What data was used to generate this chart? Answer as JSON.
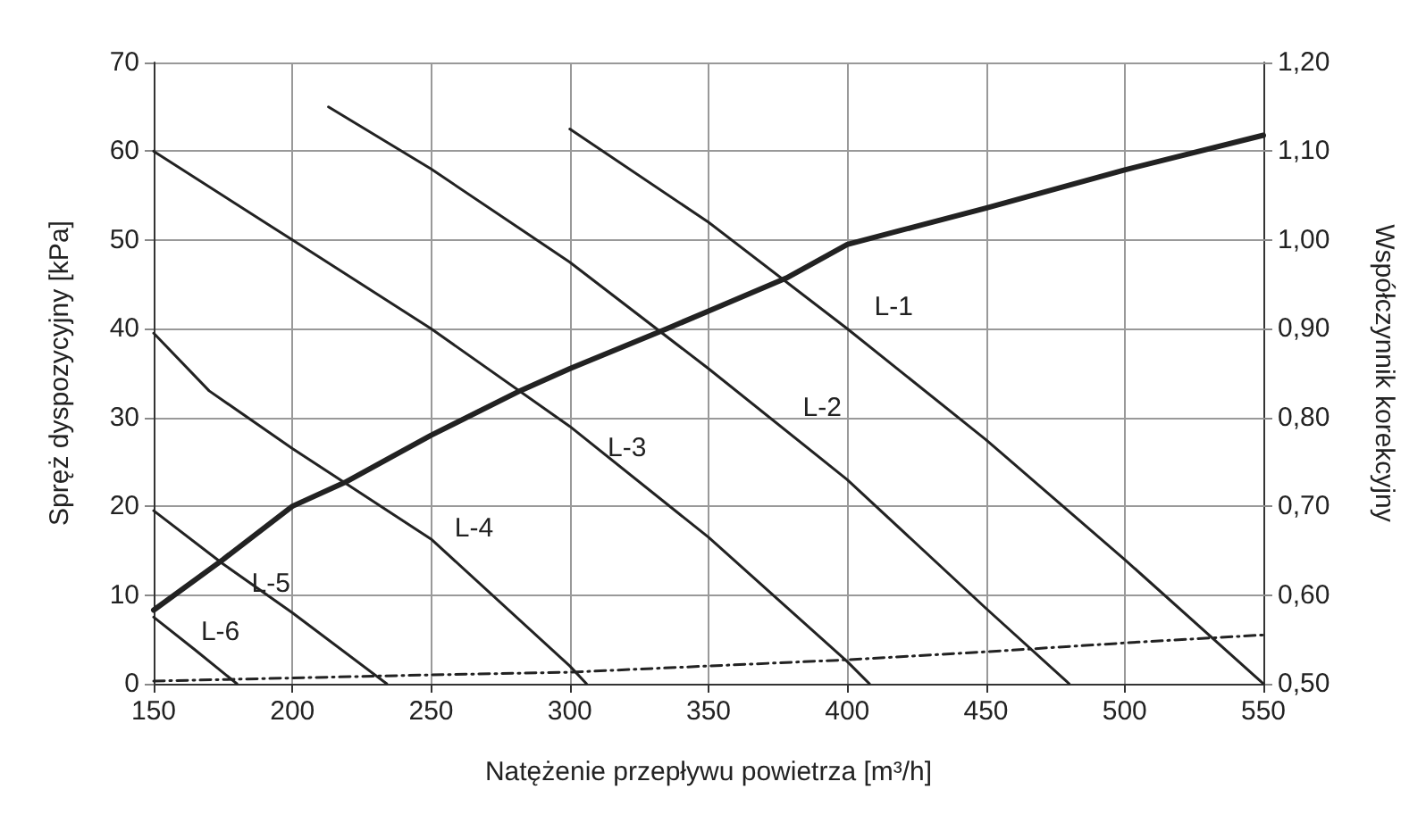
{
  "chart_data": {
    "type": "line",
    "xlabel": "Natężenie przepływu powietrza [m³/h]",
    "ylabel": "Spręż dyspozycyjny [kPa]",
    "y2label": "Współczynnik korekcyjny",
    "xlim": [
      150,
      550
    ],
    "xticks": [
      150,
      200,
      250,
      300,
      350,
      400,
      450,
      500,
      550
    ],
    "ylim": [
      0,
      70
    ],
    "yticks": [
      0,
      10,
      20,
      30,
      40,
      50,
      60,
      70
    ],
    "y2lim": [
      0.5,
      1.2
    ],
    "y2ticks": [
      {
        "value": 0.5,
        "label": "0,50"
      },
      {
        "value": 0.6,
        "label": "0,60"
      },
      {
        "value": 0.7,
        "label": "0,70"
      },
      {
        "value": 0.8,
        "label": "0,80"
      },
      {
        "value": 0.9,
        "label": "0,90"
      },
      {
        "value": 1.0,
        "label": "1,00"
      },
      {
        "value": 1.1,
        "label": "1,10"
      },
      {
        "value": 1.2,
        "label": "1,20"
      }
    ],
    "grid": true,
    "legend": false,
    "marker": "none",
    "series": [
      {
        "name": "L-1",
        "color": "#222222",
        "x": [
          300,
          350,
          400,
          450,
          500,
          550
        ],
        "values": [
          62.5,
          52,
          40,
          27.5,
          14,
          0
        ]
      },
      {
        "name": "L-2",
        "color": "#222222",
        "x": [
          213,
          250,
          300,
          350,
          400,
          450,
          480
        ],
        "values": [
          65,
          58,
          47.5,
          35.5,
          23,
          8.5,
          0
        ]
      },
      {
        "name": "L-3",
        "color": "#222222",
        "x": [
          150,
          200,
          250,
          300,
          350,
          400,
          408
        ],
        "values": [
          60,
          50,
          40,
          29,
          16.5,
          2.5,
          0
        ]
      },
      {
        "name": "L-4",
        "color": "#222222",
        "x": [
          150,
          170,
          200,
          250,
          300,
          306
        ],
        "values": [
          39.5,
          33,
          26.5,
          16.3,
          2,
          0
        ]
      },
      {
        "name": "L-5",
        "color": "#222222",
        "x": [
          150,
          175,
          200,
          234
        ],
        "values": [
          19.5,
          13.5,
          8,
          0
        ]
      },
      {
        "name": "L-6",
        "color": "#222222",
        "x": [
          150,
          165,
          180
        ],
        "values": [
          7.5,
          3.8,
          0
        ]
      },
      {
        "color": "#222222",
        "axis": "y2",
        "x": [
          150,
          175,
          200,
          219,
          250,
          282,
          300,
          335,
          350,
          378,
          400,
          450,
          500,
          550
        ],
        "values": [
          0.583,
          0.64,
          0.7,
          0.727,
          0.78,
          0.83,
          0.855,
          0.9,
          0.92,
          0.957,
          0.995,
          1.036,
          1.079,
          1.118
        ]
      },
      {
        "color": "#222222",
        "line_style": "dashed",
        "x": [
          150,
          250,
          300,
          400,
          450,
          500,
          550
        ],
        "values": [
          0.3,
          1,
          1.3,
          2.7,
          3.6,
          4.6,
          5.5
        ]
      }
    ]
  }
}
